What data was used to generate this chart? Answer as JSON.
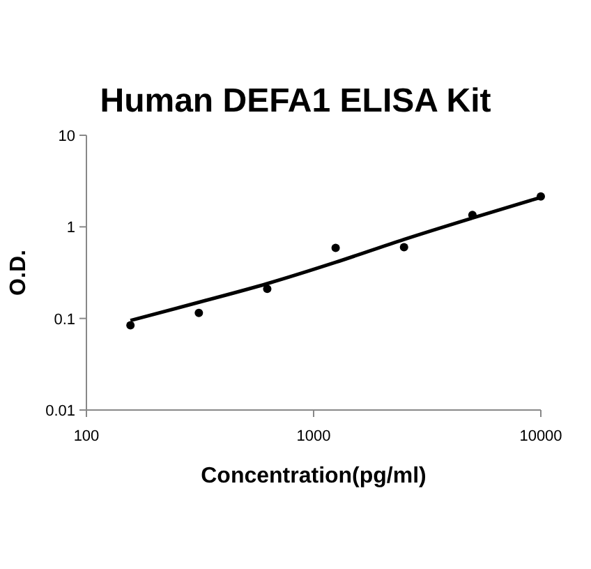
{
  "chart_data": {
    "type": "scatter",
    "title": "Human DEFA1 ELISA Kit",
    "xlabel": "Concentration(pg/ml)",
    "ylabel": "O.D.",
    "log": "xy",
    "xlim": [
      100,
      10000
    ],
    "xticks": [
      100,
      1000,
      10000
    ],
    "ylim": [
      0.01,
      10
    ],
    "yticks": [
      0.01,
      0.1,
      1,
      10
    ],
    "grid": false,
    "series": [
      {
        "color": "#000000",
        "marker": "circle",
        "x": [
          156.25,
          312.5,
          625,
          1250,
          2500,
          5000,
          10000
        ],
        "values": [
          0.084,
          0.115,
          0.21,
          0.59,
          0.6,
          1.35,
          2.15
        ]
      },
      {
        "type": "line",
        "color": "#000000",
        "marker": "none",
        "line_style": "solid",
        "x": [
          156.25,
          312.5,
          625,
          1250,
          2500,
          5000,
          10000
        ],
        "values": [
          0.095,
          0.15,
          0.24,
          0.41,
          0.73,
          1.25,
          2.1
        ]
      }
    ]
  }
}
